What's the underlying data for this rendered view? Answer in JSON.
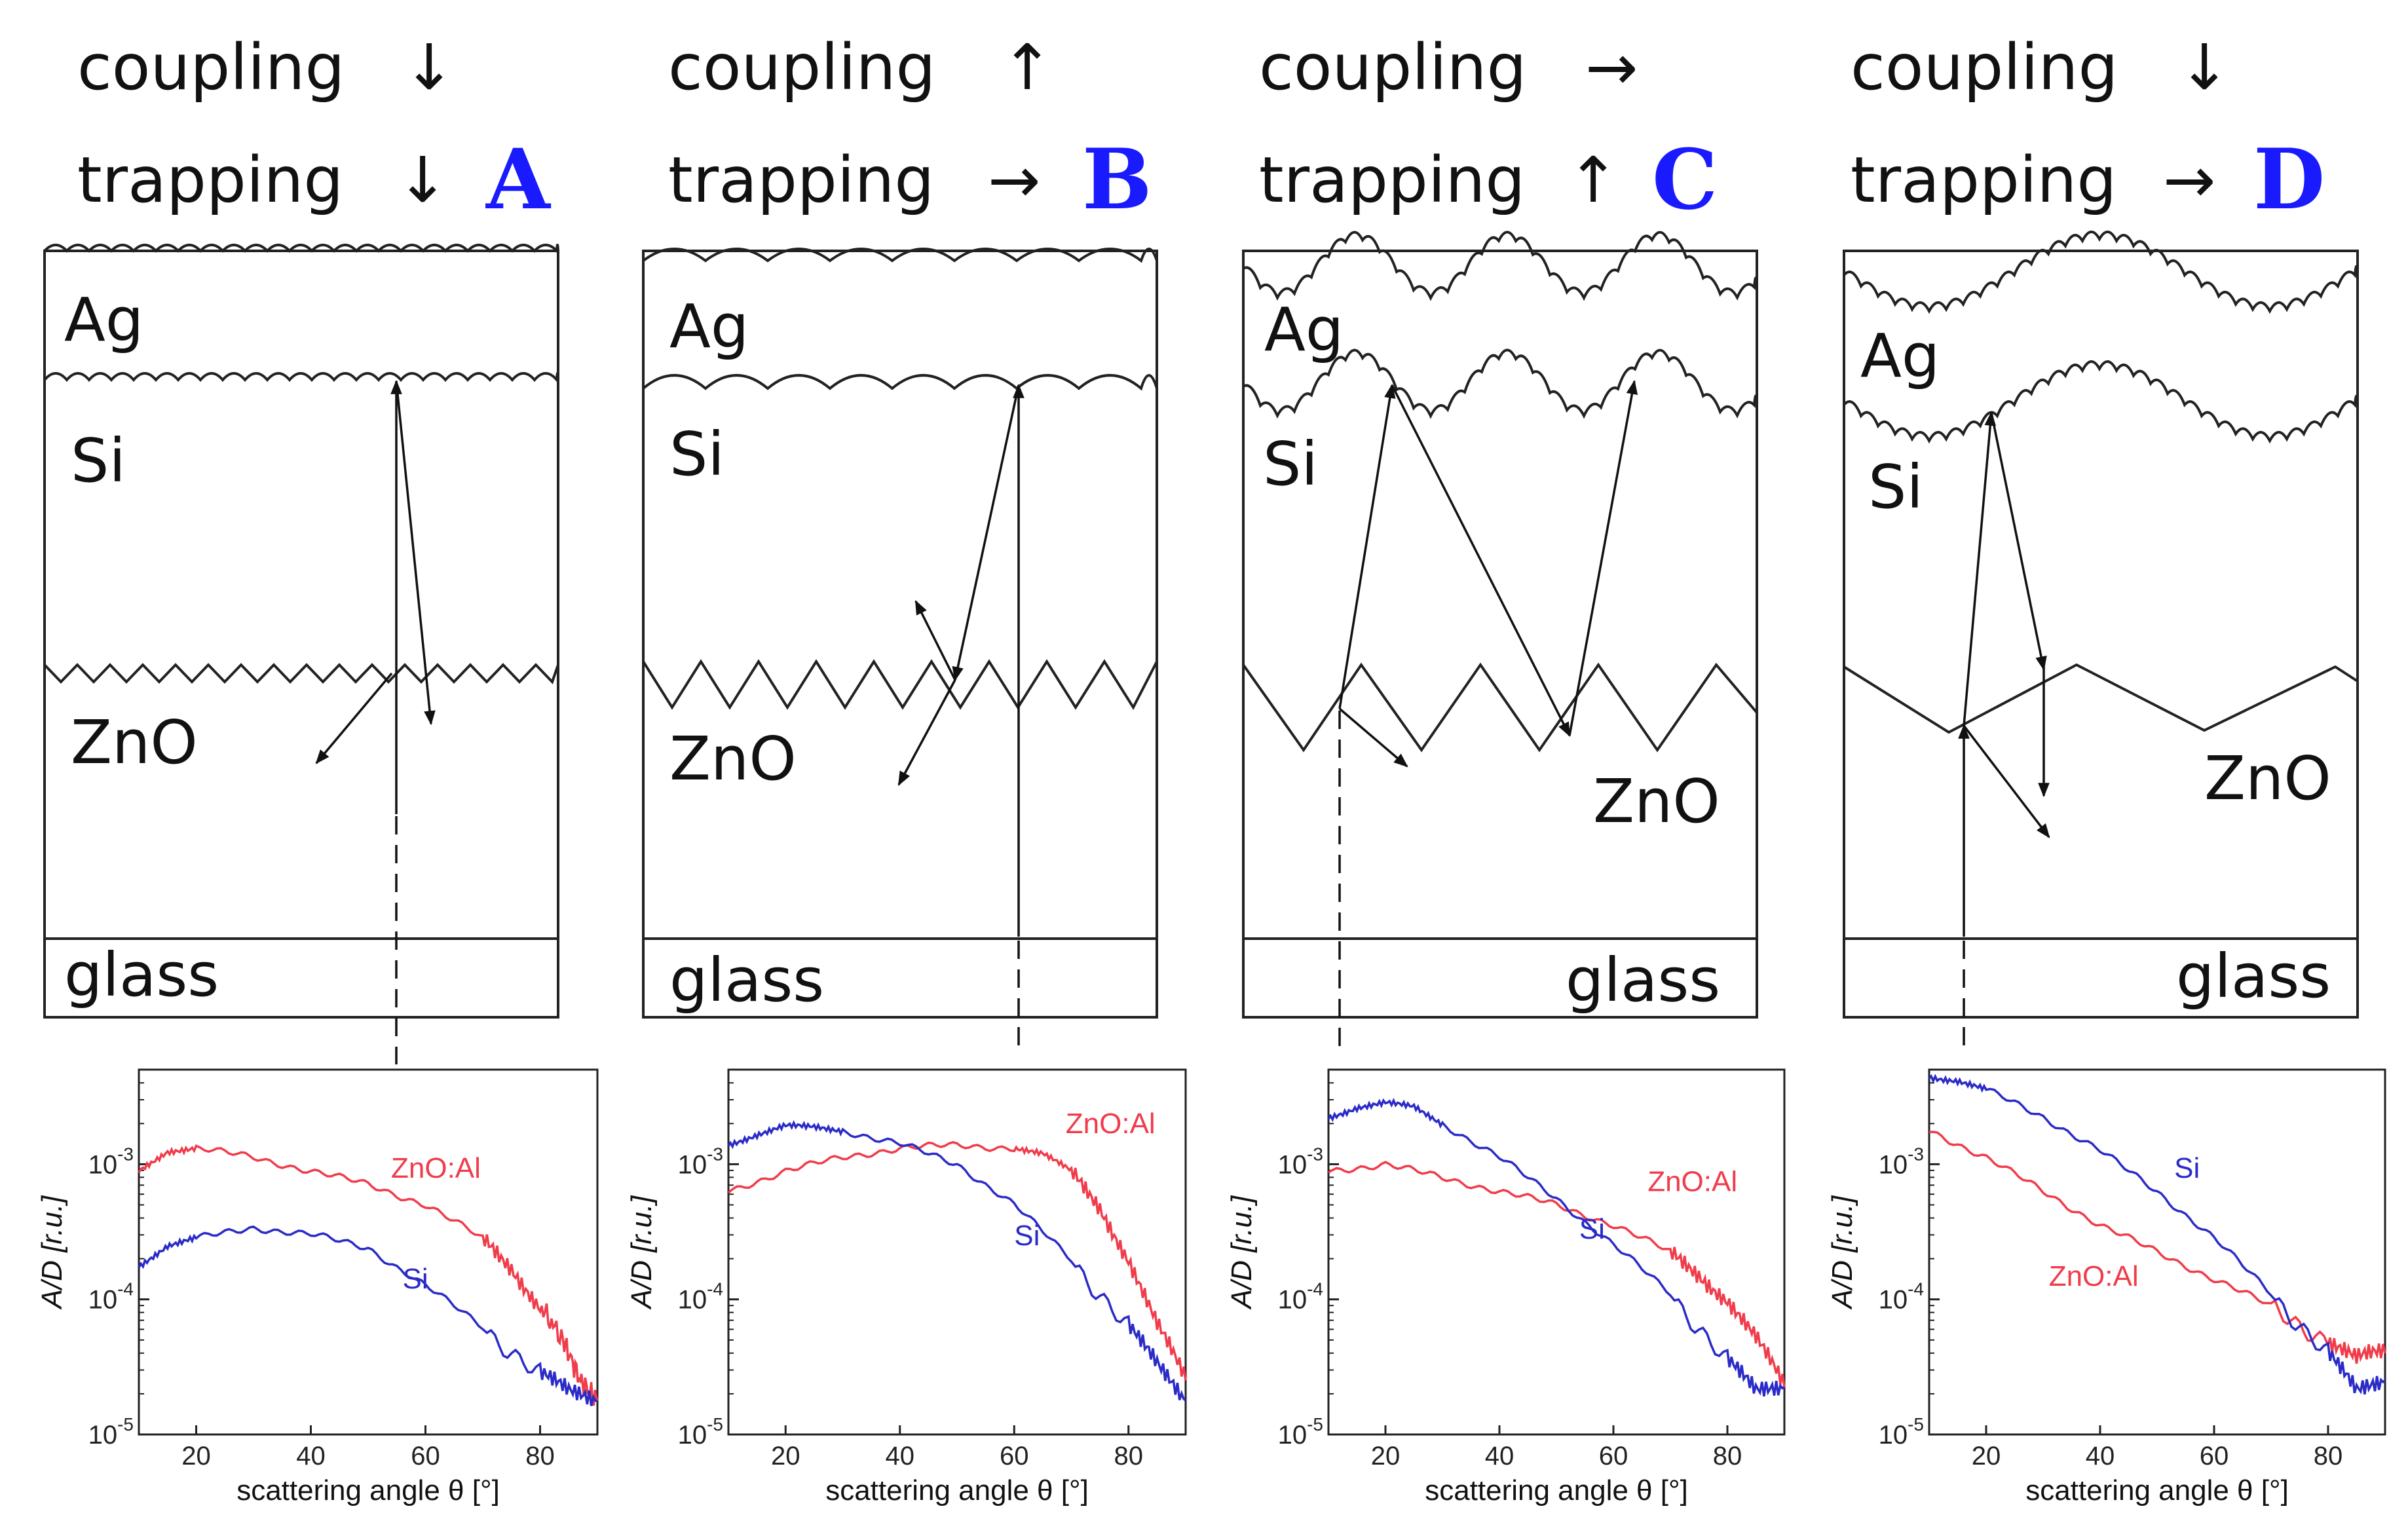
{
  "colors": {
    "tag": "#1a1aff",
    "si_curve": "#2b2bc8",
    "zno_curve": "#f03c4b",
    "ink": "#222222"
  },
  "panels": [
    {
      "coupling_label": "coupling",
      "coupling_arrow": "↓",
      "trapping_label": "trapping",
      "trapping_arrow": "↓",
      "tag": "A",
      "layers": {
        "ag": "Ag",
        "si": "Si",
        "zno": "ZnO",
        "glass": "glass"
      }
    },
    {
      "coupling_label": "coupling",
      "coupling_arrow": "↑",
      "trapping_label": "trapping",
      "trapping_arrow": "→",
      "tag": "B",
      "layers": {
        "ag": "Ag",
        "si": "Si",
        "zno": "ZnO",
        "glass": "glass"
      }
    },
    {
      "coupling_label": "coupling",
      "coupling_arrow": "→",
      "trapping_label": "trapping",
      "trapping_arrow": "↑",
      "tag": "C",
      "layers": {
        "ag": "Ag",
        "si": "Si",
        "zno": "ZnO",
        "glass": "glass"
      }
    },
    {
      "coupling_label": "coupling",
      "coupling_arrow": "↓",
      "trapping_label": "trapping",
      "trapping_arrow": "→",
      "tag": "D",
      "layers": {
        "ag": "Ag",
        "si": "Si",
        "zno": "ZnO",
        "glass": "glass"
      }
    }
  ],
  "chart_data": [
    {
      "type": "line",
      "panel": "A",
      "xlabel": "scattering angle θ [°]",
      "ylabel": "A/D [r.u.]",
      "xlim": [
        10,
        90
      ],
      "ylim_log10": [
        -5,
        -2.3
      ],
      "xticks": [
        "20",
        "40",
        "60",
        "80"
      ],
      "yticks": [
        {
          "base": "10",
          "exp": "-3",
          "log": -3
        },
        {
          "base": "10",
          "exp": "-4",
          "log": -4
        },
        {
          "base": "10",
          "exp": "-5",
          "log": -5
        }
      ],
      "series": [
        {
          "name": "ZnO:Al",
          "color": "#f03c4b",
          "x": [
            10,
            15,
            20,
            30,
            40,
            50,
            60,
            70,
            75,
            80,
            84,
            87,
            90
          ],
          "log10y": [
            -3.05,
            -2.9,
            -2.88,
            -2.95,
            -3.05,
            -3.15,
            -3.3,
            -3.55,
            -3.75,
            -4.05,
            -4.3,
            -4.6,
            -4.75
          ]
        },
        {
          "name": "Si",
          "color": "#2b2bc8",
          "x": [
            10,
            15,
            20,
            30,
            40,
            50,
            60,
            70,
            80,
            85,
            90
          ],
          "log10y": [
            -3.75,
            -3.6,
            -3.55,
            -3.47,
            -3.52,
            -3.62,
            -3.9,
            -4.2,
            -4.55,
            -4.7,
            -4.75
          ]
        }
      ],
      "labels": [
        {
          "text": "ZnO:Al",
          "color": "#f03c4b",
          "x": 54,
          "log10y": -3.1
        },
        {
          "text": "Si",
          "color": "#2b2bc8",
          "x": 56,
          "log10y": -3.92
        }
      ]
    },
    {
      "type": "line",
      "panel": "B",
      "xlabel": "scattering angle θ [°]",
      "ylabel": "A/D [r.u.]",
      "xlim": [
        10,
        90
      ],
      "ylim_log10": [
        -5,
        -2.3
      ],
      "xticks": [
        "20",
        "40",
        "60",
        "80"
      ],
      "yticks": [
        {
          "base": "10",
          "exp": "-3",
          "log": -3
        },
        {
          "base": "10",
          "exp": "-4",
          "log": -4
        },
        {
          "base": "10",
          "exp": "-5",
          "log": -5
        }
      ],
      "series": [
        {
          "name": "ZnO:Al",
          "color": "#f03c4b",
          "x": [
            10,
            20,
            30,
            40,
            50,
            60,
            65,
            70,
            75,
            80,
            85,
            90
          ],
          "log10y": [
            -3.2,
            -3.05,
            -2.95,
            -2.88,
            -2.86,
            -2.88,
            -2.93,
            -3.05,
            -3.3,
            -3.7,
            -4.2,
            -4.6
          ]
        },
        {
          "name": "Si",
          "color": "#2b2bc8",
          "x": [
            10,
            15,
            20,
            25,
            30,
            40,
            50,
            60,
            70,
            80,
            85,
            90
          ],
          "log10y": [
            -2.85,
            -2.78,
            -2.72,
            -2.73,
            -2.75,
            -2.85,
            -3.0,
            -3.3,
            -3.7,
            -4.2,
            -4.5,
            -4.75
          ]
        }
      ],
      "labels": [
        {
          "text": "ZnO:Al",
          "color": "#f03c4b",
          "x": 69,
          "log10y": -2.77
        },
        {
          "text": "Si",
          "color": "#2b2bc8",
          "x": 60,
          "log10y": -3.6
        }
      ]
    },
    {
      "type": "line",
      "panel": "C",
      "xlabel": "scattering angle θ [°]",
      "ylabel": "A/D [r.u.]",
      "xlim": [
        10,
        90
      ],
      "ylim_log10": [
        -5,
        -2.3
      ],
      "xticks": [
        "20",
        "40",
        "60",
        "80"
      ],
      "yticks": [
        {
          "base": "10",
          "exp": "-3",
          "log": -3
        },
        {
          "base": "10",
          "exp": "-4",
          "log": -4
        },
        {
          "base": "10",
          "exp": "-5",
          "log": -5
        }
      ],
      "series": [
        {
          "name": "ZnO:Al",
          "color": "#f03c4b",
          "x": [
            10,
            20,
            30,
            40,
            50,
            60,
            70,
            75,
            80,
            85,
            90
          ],
          "log10y": [
            -3.05,
            -3.0,
            -3.1,
            -3.2,
            -3.3,
            -3.45,
            -3.65,
            -3.8,
            -4.0,
            -4.3,
            -4.65
          ]
        },
        {
          "name": "Si",
          "color": "#2b2bc8",
          "x": [
            10,
            15,
            20,
            25,
            30,
            40,
            50,
            60,
            70,
            80,
            85,
            90
          ],
          "log10y": [
            -2.65,
            -2.58,
            -2.55,
            -2.58,
            -2.7,
            -2.95,
            -3.25,
            -3.6,
            -3.95,
            -4.45,
            -4.7,
            -4.65
          ]
        }
      ],
      "labels": [
        {
          "text": "ZnO:Al",
          "color": "#f03c4b",
          "x": 66,
          "log10y": -3.2
        },
        {
          "text": "Si",
          "color": "#2b2bc8",
          "x": 54,
          "log10y": -3.55
        }
      ]
    },
    {
      "type": "line",
      "panel": "D",
      "xlabel": "scattering angle θ [°]",
      "ylabel": "A/D [r.u.]",
      "xlim": [
        10,
        90
      ],
      "ylim_log10": [
        -5,
        -2.3
      ],
      "xticks": [
        "20",
        "40",
        "60",
        "80"
      ],
      "yticks": [
        {
          "base": "10",
          "exp": "-3",
          "log": -3
        },
        {
          "base": "10",
          "exp": "-4",
          "log": -4
        },
        {
          "base": "10",
          "exp": "-5",
          "log": -5
        }
      ],
      "series": [
        {
          "name": "ZnO:Al",
          "color": "#f03c4b",
          "x": [
            10,
            20,
            30,
            40,
            50,
            60,
            70,
            80,
            85,
            90
          ],
          "log10y": [
            -2.75,
            -2.95,
            -3.2,
            -3.45,
            -3.65,
            -3.85,
            -4.05,
            -4.3,
            -4.45,
            -4.4
          ]
        },
        {
          "name": "Si",
          "color": "#2b2bc8",
          "x": [
            10,
            15,
            20,
            30,
            40,
            50,
            60,
            70,
            80,
            85,
            90
          ],
          "log10y": [
            -2.35,
            -2.38,
            -2.45,
            -2.65,
            -2.9,
            -3.2,
            -3.55,
            -3.95,
            -4.4,
            -4.7,
            -4.6
          ]
        }
      ],
      "labels": [
        {
          "text": "Si",
          "color": "#2b2bc8",
          "x": 53,
          "log10y": -3.1
        },
        {
          "text": "ZnO:Al",
          "color": "#f03c4b",
          "x": 31,
          "log10y": -3.9
        }
      ]
    }
  ]
}
